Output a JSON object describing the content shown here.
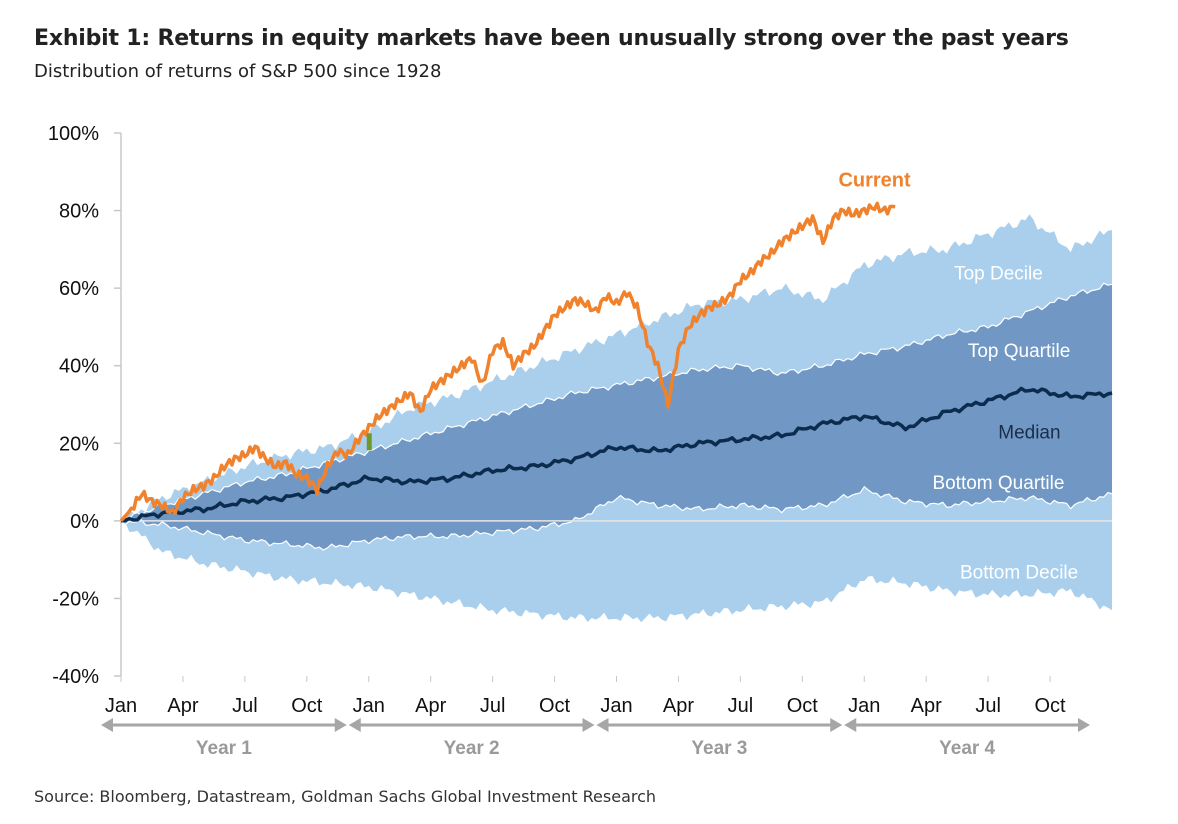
{
  "header": {
    "title": "Exhibit 1: Returns in equity markets have been unusually strong over the past years",
    "subtitle": "Distribution of returns of S&P 500 since 1928"
  },
  "footer": {
    "source": "Source: Bloomberg, Datastream, Goldman Sachs Global Investment Research"
  },
  "colors": {
    "decile_band": "#a9cfec",
    "quartile_band": "#7198c4",
    "median": "#0c2c4f",
    "current": "#f0822e",
    "axis": "#c8c8c8",
    "year_arrow": "#a6a6a6",
    "marker": "#6f9a2a"
  },
  "chart_data": {
    "type": "area",
    "title": "Exhibit 1: Returns in equity markets have been unusually strong over the past years",
    "subtitle": "Distribution of returns of S&P 500 since 1928",
    "xlabel": "",
    "ylabel": "",
    "x_unit": "months since start (Jan of Year 1)",
    "xlim": [
      0,
      48
    ],
    "ylim": [
      -40,
      100
    ],
    "y_ticks": [
      -40,
      -20,
      0,
      20,
      40,
      60,
      80,
      100
    ],
    "y_tick_labels": [
      "-40%",
      "-20%",
      "0%",
      "20%",
      "40%",
      "60%",
      "80%",
      "100%"
    ],
    "month_ticks": [
      {
        "m": 0,
        "label": "Jan"
      },
      {
        "m": 3,
        "label": "Apr"
      },
      {
        "m": 6,
        "label": "Jul"
      },
      {
        "m": 9,
        "label": "Oct"
      },
      {
        "m": 12,
        "label": "Jan"
      },
      {
        "m": 15,
        "label": "Apr"
      },
      {
        "m": 18,
        "label": "Jul"
      },
      {
        "m": 21,
        "label": "Oct"
      },
      {
        "m": 24,
        "label": "Jan"
      },
      {
        "m": 27,
        "label": "Apr"
      },
      {
        "m": 30,
        "label": "Jul"
      },
      {
        "m": 33,
        "label": "Oct"
      },
      {
        "m": 36,
        "label": "Jan"
      },
      {
        "m": 39,
        "label": "Apr"
      },
      {
        "m": 42,
        "label": "Jul"
      },
      {
        "m": 45,
        "label": "Oct"
      }
    ],
    "year_spans": [
      {
        "label": "Year 1",
        "start": 0,
        "end": 12
      },
      {
        "label": "Year 2",
        "start": 12,
        "end": 24
      },
      {
        "label": "Year 3",
        "start": 24,
        "end": 36
      },
      {
        "label": "Year 4",
        "start": 36,
        "end": 48
      }
    ],
    "x": [
      0,
      2,
      4,
      6,
      8,
      10,
      12,
      14,
      16,
      18,
      20,
      22,
      24,
      26,
      28,
      30,
      32,
      34,
      36,
      38,
      40,
      42,
      44,
      46,
      48
    ],
    "series": [
      {
        "name": "Top Decile",
        "values": [
          0,
          6,
          10,
          14,
          17,
          19,
          23,
          29,
          32,
          36,
          40,
          44,
          48,
          52,
          56,
          57,
          60,
          57,
          66,
          69,
          70,
          74,
          78,
          70,
          75
        ]
      },
      {
        "name": "Top Quartile",
        "values": [
          0,
          4,
          7,
          10,
          12,
          15,
          18,
          21,
          24,
          27,
          30,
          33,
          35,
          37,
          39,
          40,
          38,
          40,
          43,
          45,
          48,
          50,
          54,
          58,
          61
        ]
      },
      {
        "name": "Median",
        "values": [
          0,
          2,
          3,
          5,
          6,
          8,
          11,
          10,
          11,
          13,
          14,
          16,
          19,
          18,
          20,
          21,
          22,
          25,
          27,
          24,
          28,
          31,
          34,
          32,
          33
        ]
      },
      {
        "name": "Bottom Quartile",
        "values": [
          0,
          -1,
          -3,
          -5,
          -6,
          -7,
          -5,
          -4,
          -4,
          -3,
          -2,
          0,
          6,
          4,
          3,
          4,
          3,
          4,
          8,
          5,
          4,
          5,
          6,
          4,
          7
        ]
      },
      {
        "name": "Bottom Decile",
        "values": [
          0,
          -8,
          -11,
          -13,
          -15,
          -16,
          -17,
          -19,
          -21,
          -23,
          -24,
          -25,
          -25,
          -25,
          -24,
          -23,
          -22,
          -21,
          -15,
          -16,
          -18,
          -19,
          -19,
          -18,
          -23
        ]
      }
    ],
    "current": {
      "name": "Current",
      "x": [
        0,
        0.5,
        1,
        1.5,
        2,
        2.5,
        3,
        3.5,
        4,
        4.5,
        5,
        5.5,
        6,
        6.5,
        7,
        7.5,
        8,
        8.5,
        9,
        9.5,
        10,
        10.5,
        11,
        11.5,
        12,
        12.5,
        13,
        13.5,
        14,
        14.5,
        15,
        15.5,
        16,
        16.5,
        17,
        17.5,
        18,
        18.5,
        19,
        19.5,
        20,
        20.5,
        21,
        21.5,
        22,
        22.5,
        23,
        23.5,
        24,
        24.5,
        25,
        25.5,
        26,
        26.5,
        27,
        27.5,
        28,
        28.5,
        29,
        29.5,
        30,
        30.5,
        31,
        31.5,
        32,
        32.5,
        33,
        33.5,
        34,
        34.5,
        35,
        35.5,
        36,
        36.5,
        37,
        37.5
      ],
      "values": [
        0,
        3,
        7,
        5,
        4,
        2,
        6,
        8,
        9,
        11,
        14,
        16,
        17,
        19,
        16,
        14,
        15,
        12,
        11,
        8,
        14,
        18,
        17,
        21,
        24,
        27,
        29,
        31,
        33,
        28,
        34,
        36,
        38,
        40,
        42,
        35,
        44,
        46,
        40,
        43,
        45,
        49,
        53,
        55,
        57,
        56,
        54,
        58,
        56,
        59,
        55,
        46,
        40,
        30,
        44,
        50,
        53,
        55,
        56,
        58,
        62,
        64,
        67,
        69,
        72,
        74,
        76,
        78,
        72,
        78,
        80,
        79,
        80,
        81,
        80,
        81
      ]
    },
    "annotations": [
      {
        "text": "Current",
        "series": "Current"
      },
      {
        "text": "Top Decile",
        "series": "Top Decile"
      },
      {
        "text": "Top Quartile",
        "series": "Top Quartile"
      },
      {
        "text": "Median",
        "series": "Median"
      },
      {
        "text": "Bottom Quartile",
        "series": "Bottom Quartile"
      },
      {
        "text": "Bottom Decile",
        "series": "Bottom Decile"
      }
    ]
  }
}
